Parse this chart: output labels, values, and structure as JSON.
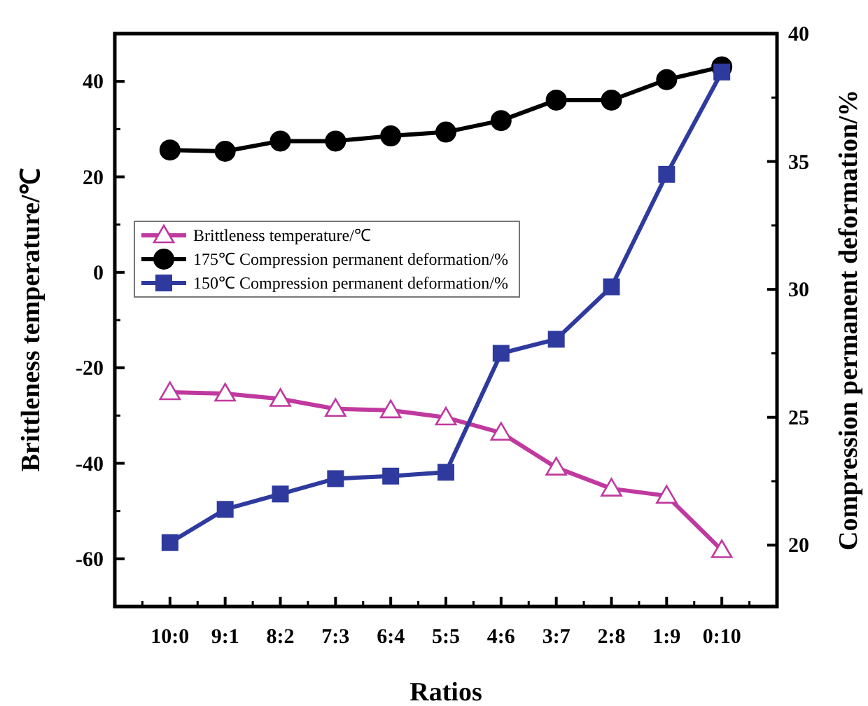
{
  "chart_data": {
    "type": "line",
    "xlabel": "Ratios",
    "ylabel": "Brittleness temperature/℃",
    "y2label": "Compression permanent deformation/%",
    "categories": [
      "10:0",
      "9:1",
      "8:2",
      "7:3",
      "6:4",
      "5:5",
      "4:6",
      "3:7",
      "2:8",
      "1:9",
      "0:10"
    ],
    "ylim": [
      -70,
      50
    ],
    "yticks": [
      -60,
      -40,
      -20,
      0,
      20,
      40
    ],
    "y2lim": [
      17.6,
      40
    ],
    "y2ticks": [
      20,
      25,
      30,
      35,
      40
    ],
    "legend": "left",
    "grid": false,
    "line_style": "solid",
    "series": [
      {
        "name": "Brittleness temperature/℃",
        "color": "#c0399f",
        "marker": "triangle",
        "values": [
          -25.1,
          -25.4,
          -26.5,
          -28.6,
          -28.9,
          -30.4,
          -33.6,
          -40.9,
          -45.3,
          -46.8,
          -58.2
        ]
      },
      {
        "name": "175℃ Compression permanent deformation/%",
        "color": "#000000",
        "marker": "circle",
        "axis": "y2",
        "values": [
          35.45,
          35.4,
          35.8,
          35.8,
          36.0,
          36.15,
          36.6,
          37.4,
          37.4,
          38.2,
          38.7
        ]
      },
      {
        "name": "150℃ Compression permanent deformation/%",
        "color": "#2e3a9e",
        "marker": "square",
        "axis": "y2",
        "values": [
          20.1,
          21.4,
          22.0,
          22.6,
          22.7,
          22.85,
          27.5,
          28.05,
          30.1,
          34.5,
          38.5
        ]
      }
    ]
  }
}
